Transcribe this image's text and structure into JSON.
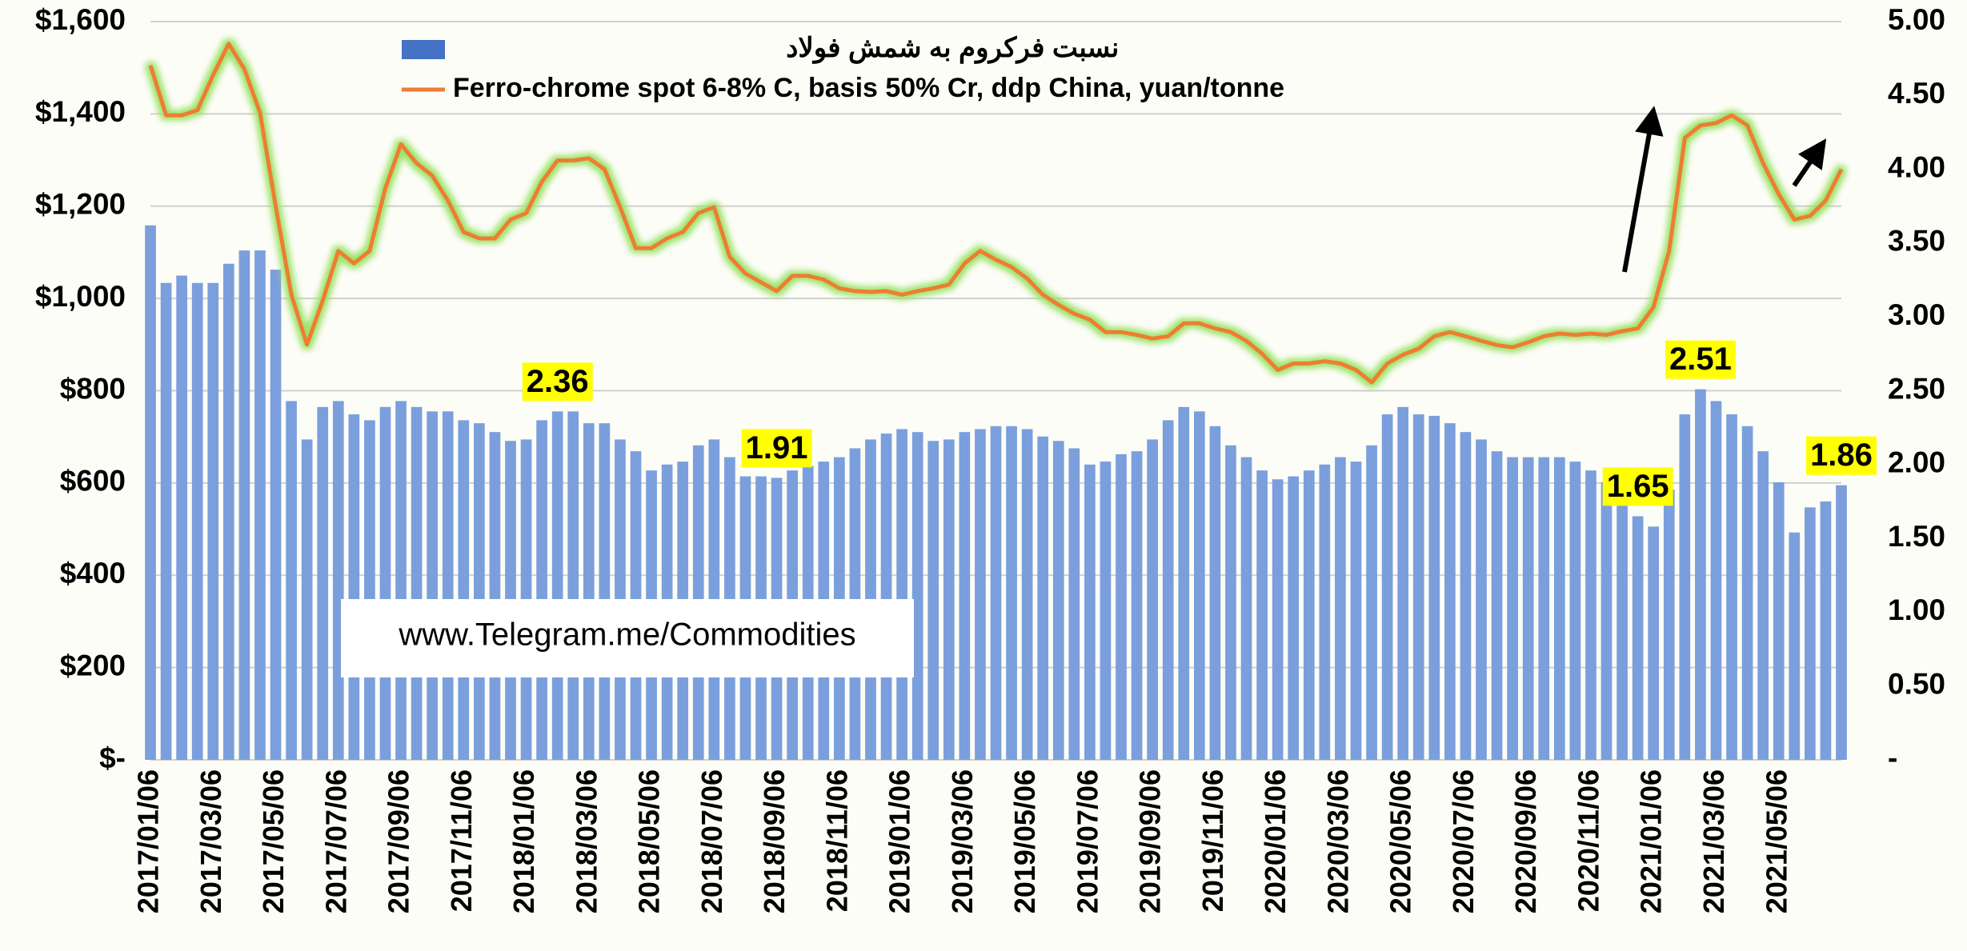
{
  "chart_data": {
    "type": "combo",
    "categories": [
      "2017/01/06",
      null,
      null,
      null,
      "2017/03/06",
      null,
      null,
      null,
      "2017/05/06",
      null,
      null,
      null,
      "2017/07/06",
      null,
      null,
      null,
      "2017/09/06",
      null,
      null,
      null,
      "2017/11/06",
      null,
      null,
      null,
      "2018/01/06",
      null,
      null,
      null,
      "2018/03/06",
      null,
      null,
      null,
      "2018/05/06",
      null,
      null,
      null,
      "2018/07/06",
      null,
      null,
      null,
      "2018/09/06",
      null,
      null,
      null,
      "2018/11/06",
      null,
      null,
      null,
      "2019/01/06",
      null,
      null,
      null,
      "2019/03/06",
      null,
      null,
      null,
      "2019/05/06",
      null,
      null,
      null,
      "2019/07/06",
      null,
      null,
      null,
      "2019/09/06",
      null,
      null,
      null,
      "2019/11/06",
      null,
      null,
      null,
      "2020/01/06",
      null,
      null,
      null,
      "2020/03/06",
      null,
      null,
      null,
      "2020/05/06",
      null,
      null,
      null,
      "2020/07/06",
      null,
      null,
      null,
      "2020/09/06",
      null,
      null,
      null,
      "2020/11/06",
      null,
      null,
      null,
      "2021/01/06",
      null,
      null,
      null,
      "2021/03/06",
      null,
      null,
      null,
      "2021/05/06",
      null,
      null,
      null,
      null
    ],
    "series": [
      {
        "name": "نسبت فرکروم به شمش فولاد",
        "type": "bar",
        "axis": "y2",
        "color": "#7b9fdc",
        "values": [
          3.62,
          3.23,
          3.28,
          3.23,
          3.23,
          3.36,
          3.45,
          3.45,
          3.32,
          2.43,
          2.17,
          2.39,
          2.43,
          2.34,
          2.3,
          2.39,
          2.43,
          2.39,
          2.36,
          2.36,
          2.3,
          2.28,
          2.22,
          2.16,
          2.17,
          2.3,
          2.36,
          2.36,
          2.28,
          2.28,
          2.17,
          2.09,
          1.96,
          2.0,
          2.02,
          2.13,
          2.17,
          2.05,
          1.92,
          1.92,
          1.91,
          1.96,
          1.99,
          2.02,
          2.05,
          2.11,
          2.17,
          2.21,
          2.24,
          2.22,
          2.16,
          2.17,
          2.22,
          2.24,
          2.26,
          2.26,
          2.24,
          2.19,
          2.16,
          2.11,
          2.0,
          2.02,
          2.07,
          2.09,
          2.17,
          2.3,
          2.39,
          2.36,
          2.26,
          2.13,
          2.05,
          1.96,
          1.9,
          1.92,
          1.96,
          2.0,
          2.05,
          2.02,
          2.13,
          2.34,
          2.39,
          2.34,
          2.33,
          2.28,
          2.22,
          2.17,
          2.09,
          2.05,
          2.05,
          2.05,
          2.05,
          2.02,
          1.96,
          1.88,
          1.75,
          1.65,
          1.58,
          1.83,
          2.34,
          2.51,
          2.43,
          2.34,
          2.26,
          2.09,
          1.88,
          1.54,
          1.71,
          1.75,
          1.86
        ],
        "value_labels": [
          null,
          null,
          null,
          null,
          null,
          null,
          null,
          null,
          null,
          null,
          null,
          null,
          null,
          null,
          null,
          null,
          null,
          null,
          null,
          null,
          null,
          null,
          null,
          null,
          null,
          null,
          "2.36",
          null,
          null,
          null,
          null,
          null,
          null,
          null,
          null,
          null,
          null,
          null,
          null,
          null,
          "1.91",
          null,
          null,
          null,
          null,
          null,
          null,
          null,
          null,
          null,
          null,
          null,
          null,
          null,
          null,
          null,
          null,
          null,
          null,
          null,
          null,
          null,
          null,
          null,
          null,
          null,
          null,
          null,
          null,
          null,
          null,
          null,
          null,
          null,
          null,
          null,
          null,
          null,
          null,
          null,
          null,
          null,
          null,
          null,
          null,
          null,
          null,
          null,
          null,
          null,
          null,
          null,
          null,
          null,
          null,
          "1.65",
          null,
          null,
          null,
          "2.51",
          null,
          null,
          null,
          null,
          null,
          null,
          null,
          null,
          "1.86"
        ]
      },
      {
        "name": "Ferro-chrome spot 6-8% C, basis 50% Cr, ddp China, yuan/tonne",
        "type": "line",
        "color": "#ed7d31",
        "values": [
          1505,
          1397,
          1397,
          1408,
          1484,
          1552,
          1497,
          1402,
          1200,
          1008,
          900,
          995,
          1103,
          1076,
          1103,
          1239,
          1334,
          1293,
          1266,
          1212,
          1144,
          1130,
          1130,
          1171,
          1185,
          1253,
          1299,
          1299,
          1304,
          1280,
          1198,
          1109,
          1109,
          1130,
          1144,
          1185,
          1198,
          1090,
          1054,
          1035,
          1016,
          1049,
          1049,
          1041,
          1022,
          1016,
          1014,
          1016,
          1008,
          1016,
          1022,
          1030,
          1076,
          1103,
          1084,
          1068,
          1043,
          1008,
          986,
          967,
          954,
          927,
          927,
          921,
          913,
          918,
          946,
          946,
          935,
          927,
          908,
          880,
          845,
          859,
          859,
          864,
          859,
          845,
          818,
          859,
          878,
          891,
          918,
          927,
          918,
          908,
          899,
          894,
          905,
          918,
          924,
          921,
          924,
          921,
          929,
          935,
          981,
          1103,
          1348,
          1375,
          1380,
          1397,
          1375,
          1293,
          1226,
          1171,
          1179,
          1212,
          1280
        ]
      }
    ],
    "ylim": [
      0,
      1600
    ],
    "yticks": [
      {
        "value": 0,
        "label": "$-"
      },
      {
        "value": 200,
        "label": "$200"
      },
      {
        "value": 400,
        "label": "$400"
      },
      {
        "value": 600,
        "label": "$600"
      },
      {
        "value": 800,
        "label": "$800"
      },
      {
        "value": 1000,
        "label": "$1,000"
      },
      {
        "value": 1200,
        "label": "$1,200"
      },
      {
        "value": 1400,
        "label": "$1,400"
      },
      {
        "value": 1600,
        "label": "$1,600"
      }
    ],
    "y2lim": [
      0,
      5
    ],
    "y2ticks": [
      {
        "value": 0,
        "label": "-"
      },
      {
        "value": 0.5,
        "label": "0.50"
      },
      {
        "value": 1,
        "label": "1.00"
      },
      {
        "value": 1.5,
        "label": "1.50"
      },
      {
        "value": 2,
        "label": "2.00"
      },
      {
        "value": 2.5,
        "label": "2.50"
      },
      {
        "value": 3,
        "label": "3.00"
      },
      {
        "value": 3.5,
        "label": "3.50"
      },
      {
        "value": 4,
        "label": "4.00"
      },
      {
        "value": 4.5,
        "label": "4.50"
      },
      {
        "value": 5,
        "label": "5.00"
      }
    ],
    "grid": true,
    "annotation": "www.Telegram.me/Commodities"
  }
}
